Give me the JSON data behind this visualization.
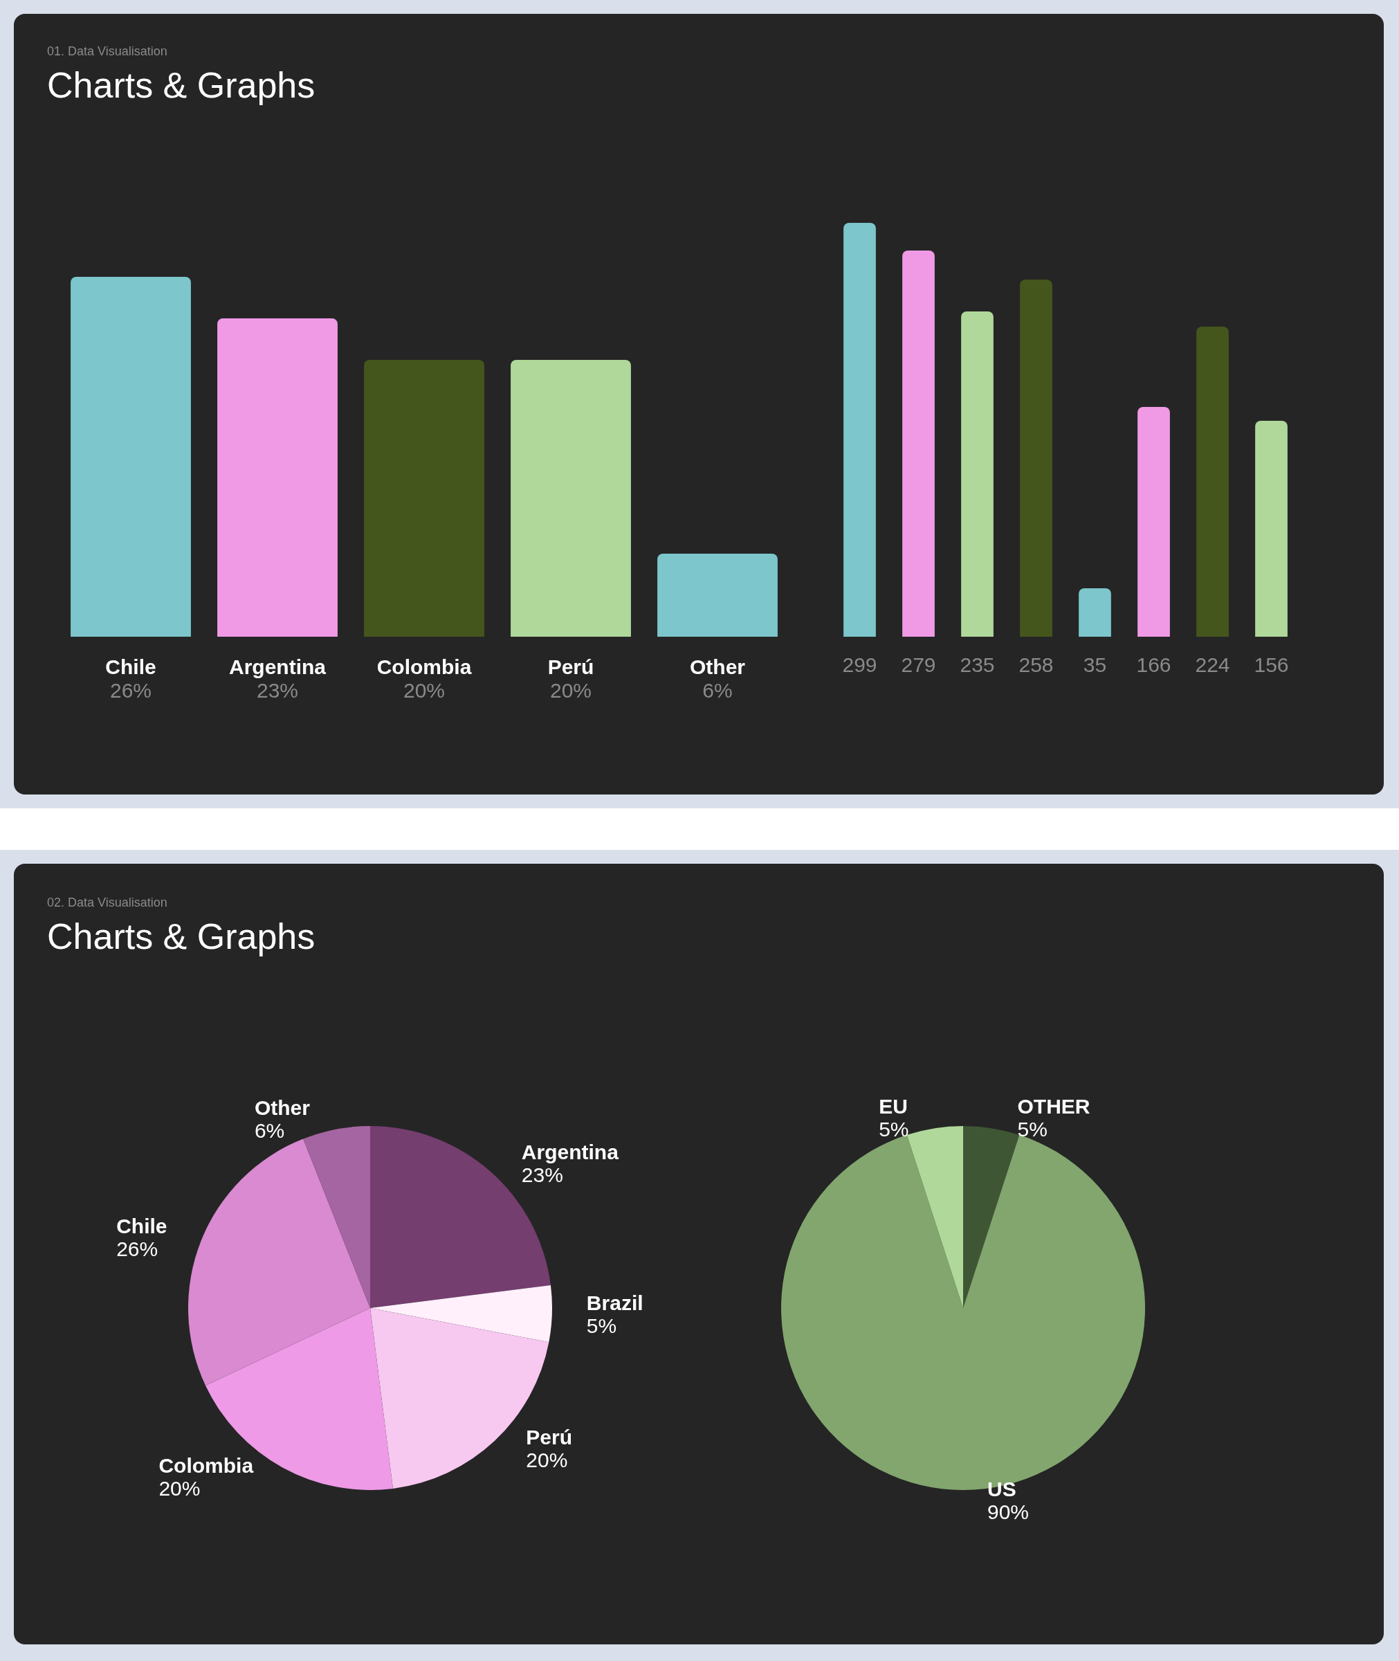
{
  "chart_data": [
    {
      "type": "bar",
      "subtitle": "01. Data Visualisation",
      "title": "Charts & Graphs",
      "categories": [
        "Chile",
        "Argentina",
        "Colombia",
        "Perú",
        "Other"
      ],
      "values": [
        26,
        23,
        20,
        20,
        6
      ],
      "value_labels": [
        "26%",
        "23%",
        "20%",
        "20%",
        "6%"
      ],
      "colors": [
        "#7cc6cc",
        "#f09ae6",
        "#45561d",
        "#afd89a",
        "#7cc6cc"
      ]
    },
    {
      "type": "bar",
      "categories": [
        null,
        null,
        null,
        null,
        null,
        null,
        null,
        null
      ],
      "values": [
        299,
        279,
        235,
        258,
        35,
        166,
        224,
        156
      ],
      "data_labels": true,
      "colors": [
        "#7cc6cc",
        "#f09ae6",
        "#afd89a",
        "#45561d",
        "#7cc6cc",
        "#f09ae6",
        "#45561d",
        "#afd89a"
      ]
    },
    {
      "type": "pie",
      "subtitle": "02. Data Visualisation",
      "title": "Charts & Graphs",
      "categories": [
        "Argentina",
        "Brazil",
        "Perú",
        "Colombia",
        "Chile",
        "Other"
      ],
      "values": [
        23,
        5,
        20,
        20,
        26,
        6
      ],
      "value_labels": [
        "23%",
        "5%",
        "20%",
        "20%",
        "26%",
        "6%"
      ],
      "colors": [
        "#743e6f",
        "#fff0fb",
        "#f7c8f0",
        "#ee9ae6",
        "#d98ad0",
        "#a565a2"
      ]
    },
    {
      "type": "pie",
      "categories": [
        "OTHER",
        "US",
        "EU"
      ],
      "values": [
        5,
        90,
        5
      ],
      "value_labels": [
        "5%",
        "90%",
        "5%"
      ],
      "colors": [
        "#3f5634",
        "#82a66e",
        "#afd89a"
      ]
    }
  ]
}
